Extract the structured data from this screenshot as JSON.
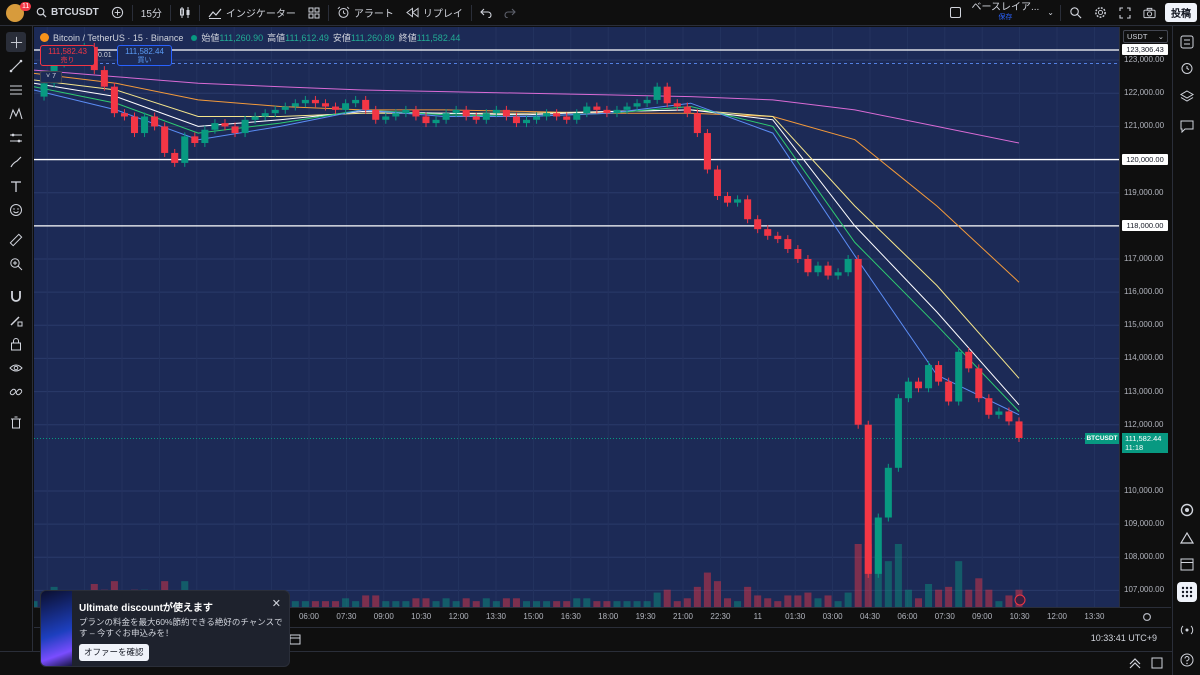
{
  "topbar": {
    "notif_count": "11",
    "symbol": "BTCUSDT",
    "interval": "15分",
    "indicators_label": "インジケーター",
    "alert_label": "アラート",
    "replay_label": "リプレイ",
    "layout_name": "ベースレイア...",
    "layout_status": "保存",
    "post_label": "投稿"
  },
  "legend": {
    "title": "Bitcoin / TetherUS · 15 · Binance",
    "open_label": "始値",
    "open": "111,260.90",
    "high_label": "高値",
    "high": "111,612.49",
    "low_label": "安値",
    "low": "111,260.89",
    "close_label": "終値",
    "close": "111,582.44",
    "sell_price": "111,582.43",
    "sell_label": "売り",
    "spread": "0.01",
    "buy_price": "111,582.44",
    "buy_label": "買い",
    "indicator_count": "7"
  },
  "currency": "USDT",
  "price_axis": {
    "ticks": [
      "123,000.00",
      "122,000.00",
      "121,000.00",
      "119,000.00",
      "117,000.00",
      "116,000.00",
      "115,000.00",
      "114,000.00",
      "113,000.00",
      "112,000.00",
      "110,000.00",
      "109,000.00",
      "108,000.00",
      "107,000.00"
    ],
    "tick_values": [
      123000,
      122000,
      121000,
      119000,
      117000,
      116000,
      115000,
      114000,
      113000,
      112000,
      110000,
      109000,
      108000,
      107000
    ],
    "hlines": [
      {
        "label": "123,306.43",
        "value": 123306.43
      },
      {
        "label": "120,000.00",
        "value": 120000
      },
      {
        "label": "118,000.00",
        "value": 118000
      }
    ],
    "current_price": "111,582.44",
    "current_value": 111582.44,
    "countdown": "11:18",
    "current_tag": "BTCUSDT"
  },
  "time_axis": {
    "labels": [
      "06:00",
      "07:30",
      "09:00",
      "10:30",
      "12:00",
      "13:30",
      "15:00",
      "16:30",
      "18:00",
      "19:30",
      "21:00",
      "22:30",
      "11",
      "01:30",
      "03:00",
      "04:30",
      "06:00",
      "07:30",
      "09:00",
      "10:30",
      "12:00",
      "13:30"
    ]
  },
  "status": {
    "clock": "10:33:41 UTC+9"
  },
  "promo": {
    "title": "Ultimate discountが使えます",
    "body": "プランの料金を最大60%節約できる絶好のチャンスです – 今すぐお申込みを！",
    "button": "オファーを確認"
  },
  "chart_data": {
    "type": "candlestick",
    "symbol": "Bitcoin / TetherUS",
    "interval": "15",
    "exchange": "Binance",
    "yrange": [
      106500,
      124000
    ],
    "horizontal_lines": [
      123306.43,
      120000,
      118000
    ],
    "price_path": [
      121900,
      122300,
      122900,
      123100,
      123200,
      123400,
      122700,
      122200,
      121400,
      121300,
      120800,
      121300,
      121000,
      120200,
      119900,
      120700,
      120500,
      120900,
      121100,
      121000,
      120800,
      121200,
      121300,
      121400,
      121500,
      121600,
      121700,
      121800,
      121700,
      121600,
      121500,
      121700,
      121800,
      121500,
      121200,
      121300,
      121400,
      121500,
      121300,
      121100,
      121200,
      121400,
      121500,
      121300,
      121200,
      121400,
      121500,
      121300,
      121100,
      121200,
      121300,
      121400,
      121300,
      121200,
      121400,
      121600,
      121500,
      121400,
      121500,
      121600,
      121700,
      121800,
      122200,
      121700,
      121600,
      121400,
      120800,
      119700,
      118900,
      118700,
      118800,
      118200,
      117900,
      117700,
      117600,
      117300,
      117000,
      116600,
      116800,
      116500,
      116600,
      117000,
      112000,
      107500,
      109200,
      110700,
      112800,
      113300,
      113100,
      113800,
      113300,
      112700,
      114200,
      113700,
      112800,
      112300,
      112400,
      112100,
      111600
    ],
    "ma_lines": [
      {
        "color": "#d96bd5",
        "values": [
          122700,
          122500,
          122300,
          122200,
          122100,
          122050,
          122000,
          121950,
          121900,
          121800,
          121500,
          121000,
          120500
        ]
      },
      {
        "color": "#f39a3b",
        "values": [
          122600,
          122300,
          121800,
          121600,
          121500,
          121500,
          121450,
          121400,
          121400,
          121300,
          120600,
          118600,
          116300
        ]
      },
      {
        "color": "#f4e58c",
        "values": [
          122400,
          122100,
          121300,
          121300,
          121400,
          121400,
          121400,
          121450,
          121500,
          121300,
          118600,
          116200,
          113400
        ]
      },
      {
        "color": "#ffffff",
        "values": [
          122300,
          121900,
          121000,
          121200,
          121450,
          121400,
          121350,
          121450,
          121500,
          121200,
          118000,
          115400,
          112600
        ]
      },
      {
        "color": "#2ecc71",
        "values": [
          122200,
          121700,
          120800,
          121100,
          121500,
          121350,
          121300,
          121400,
          121600,
          121000,
          117500,
          115000,
          112400
        ]
      },
      {
        "color": "#5b8df5",
        "values": [
          122100,
          121500,
          120600,
          121000,
          121500,
          121300,
          121300,
          121400,
          121700,
          120800,
          117100,
          113500,
          112300
        ]
      }
    ]
  }
}
